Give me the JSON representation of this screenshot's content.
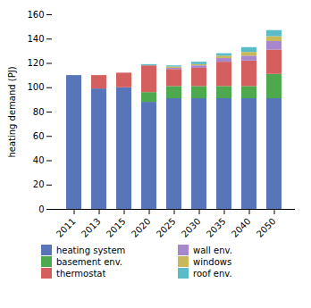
{
  "chart_data": {
    "type": "bar",
    "stacked": true,
    "categories": [
      "2011",
      "2013",
      "2015",
      "2020",
      "2025",
      "2030",
      "2035",
      "2040",
      "2050"
    ],
    "series": [
      {
        "name": "heating system",
        "color": "#5775b8",
        "values": [
          110,
          99,
          100,
          88,
          91,
          91,
          91,
          91,
          91
        ]
      },
      {
        "name": "basement env.",
        "color": "#4ea94e",
        "values": [
          0,
          0,
          0,
          8,
          10,
          10,
          10,
          10,
          20
        ]
      },
      {
        "name": "thermostat",
        "color": "#d45f5f",
        "values": [
          0,
          11,
          12,
          22,
          14,
          15,
          20,
          21,
          20
        ]
      },
      {
        "name": "wall env.",
        "color": "#a888cc",
        "values": [
          0,
          0,
          0,
          0,
          1,
          2,
          3,
          4,
          7
        ]
      },
      {
        "name": "windows",
        "color": "#c8b85a",
        "values": [
          0,
          0,
          0,
          0,
          1,
          1,
          2,
          3,
          4
        ]
      },
      {
        "name": "roof env.",
        "color": "#5bbcc8",
        "values": [
          0,
          0,
          0,
          1,
          1,
          2,
          2,
          4,
          5
        ]
      }
    ],
    "ylabel": "heating demand (PJ)",
    "ylim": [
      0,
      160
    ],
    "yticks": [
      0,
      20,
      40,
      60,
      80,
      100,
      120,
      140,
      160
    ],
    "grid": false,
    "legend": "bottom"
  }
}
